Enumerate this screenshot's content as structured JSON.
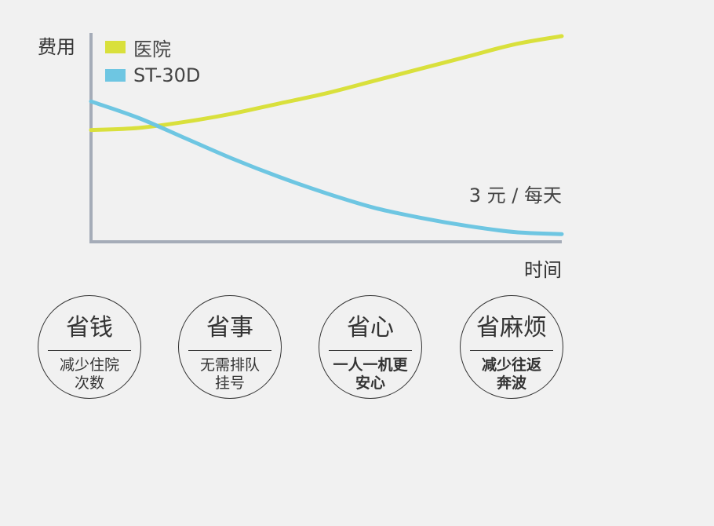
{
  "chart_data": {
    "type": "line",
    "ylabel": "费用",
    "xlabel": "时间",
    "annotation": "3 元 / 每天",
    "legend_position": "top-left",
    "grid": false,
    "axis_ticks": false,
    "x": [
      0,
      0.1,
      0.2,
      0.3,
      0.4,
      0.5,
      0.6,
      0.7,
      0.8,
      0.9,
      1.0
    ],
    "ylim": [
      0,
      1
    ],
    "series": [
      {
        "name": "医院",
        "color": "#d9e03c",
        "values": [
          0.54,
          0.55,
          0.58,
          0.62,
          0.67,
          0.72,
          0.78,
          0.84,
          0.9,
          0.96,
          1.0
        ]
      },
      {
        "name": "ST-30D",
        "color": "#6ec6e2",
        "values": [
          0.68,
          0.6,
          0.5,
          0.4,
          0.31,
          0.23,
          0.16,
          0.11,
          0.07,
          0.04,
          0.03
        ]
      }
    ],
    "axis_color": "#a5acb8"
  },
  "badges": [
    {
      "title": "省钱",
      "lines": [
        "减少住院",
        "次数"
      ]
    },
    {
      "title": "省事",
      "lines": [
        "无需排队",
        "挂号"
      ]
    },
    {
      "title": "省心",
      "lines": [
        "一人一机更",
        "安心"
      ]
    },
    {
      "title": "省麻烦",
      "lines": [
        "减少往返",
        "奔波"
      ]
    }
  ]
}
